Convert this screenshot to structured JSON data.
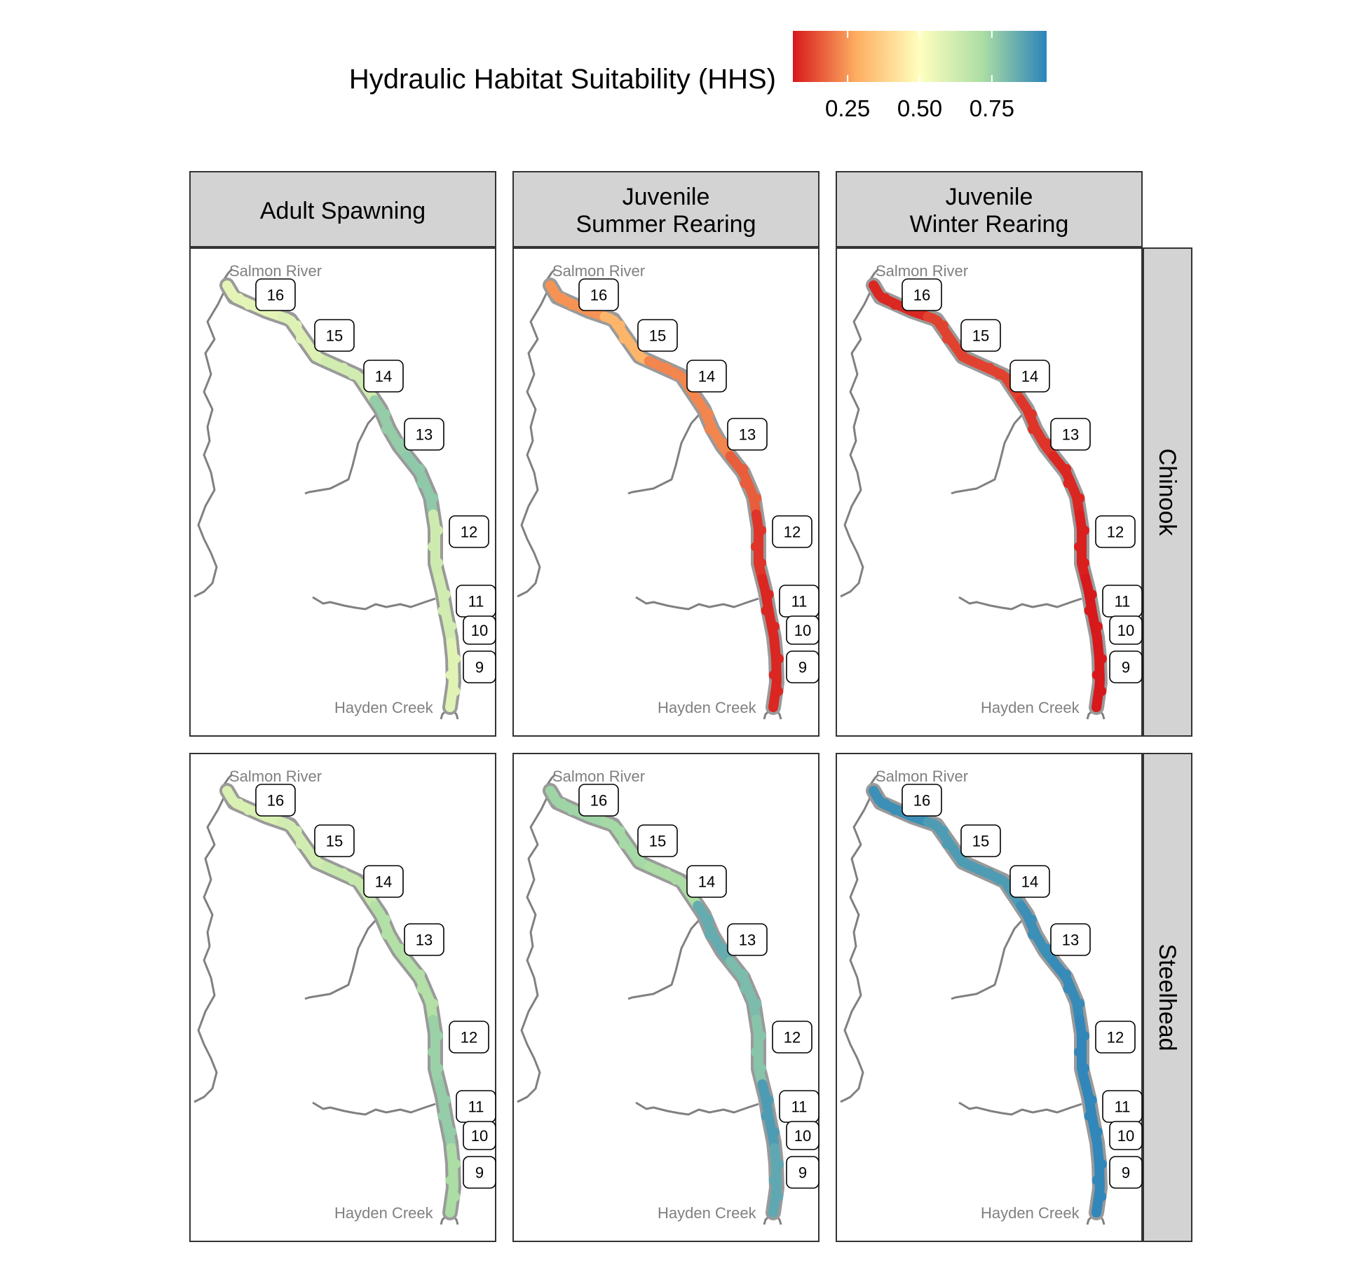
{
  "legend": {
    "title": "Hydraulic Habitat Suitability (HHS)",
    "ticks": [
      {
        "value": 0.25,
        "label": "0.25"
      },
      {
        "value": 0.5,
        "label": "0.50"
      },
      {
        "value": 0.75,
        "label": "0.75"
      }
    ],
    "range": [
      0.06,
      0.94
    ],
    "palette": [
      "#d7191c",
      "#fdae61",
      "#ffffbf",
      "#abdda4",
      "#2b83ba"
    ]
  },
  "columns": [
    {
      "label": "Adult Spawning"
    },
    {
      "label": "Juvenile\nSummer Rearing"
    },
    {
      "label": "Juvenile\nWinter Rearing"
    }
  ],
  "rows": [
    {
      "label": "Chinook"
    },
    {
      "label": "Steelhead"
    }
  ],
  "places": {
    "upstream": "Salmon River",
    "downstream": "Hayden Creek"
  },
  "reaches": [
    "16",
    "15",
    "14",
    "13",
    "12",
    "11",
    "10",
    "9"
  ],
  "hhs": [
    [
      [
        0.57,
        0.59,
        0.62,
        0.76,
        0.77,
        0.63,
        0.62,
        0.58
      ],
      [
        0.24,
        0.3,
        0.22,
        0.22,
        0.16,
        0.1,
        0.08,
        0.08
      ],
      [
        0.08,
        0.12,
        0.12,
        0.1,
        0.08,
        0.07,
        0.06,
        0.06
      ]
    ],
    [
      [
        0.6,
        0.62,
        0.65,
        0.7,
        0.7,
        0.75,
        0.76,
        0.72
      ],
      [
        0.74,
        0.73,
        0.72,
        0.84,
        0.8,
        0.78,
        0.88,
        0.85
      ],
      [
        0.91,
        0.88,
        0.88,
        0.91,
        0.92,
        0.93,
        0.93,
        0.93
      ]
    ]
  ]
}
